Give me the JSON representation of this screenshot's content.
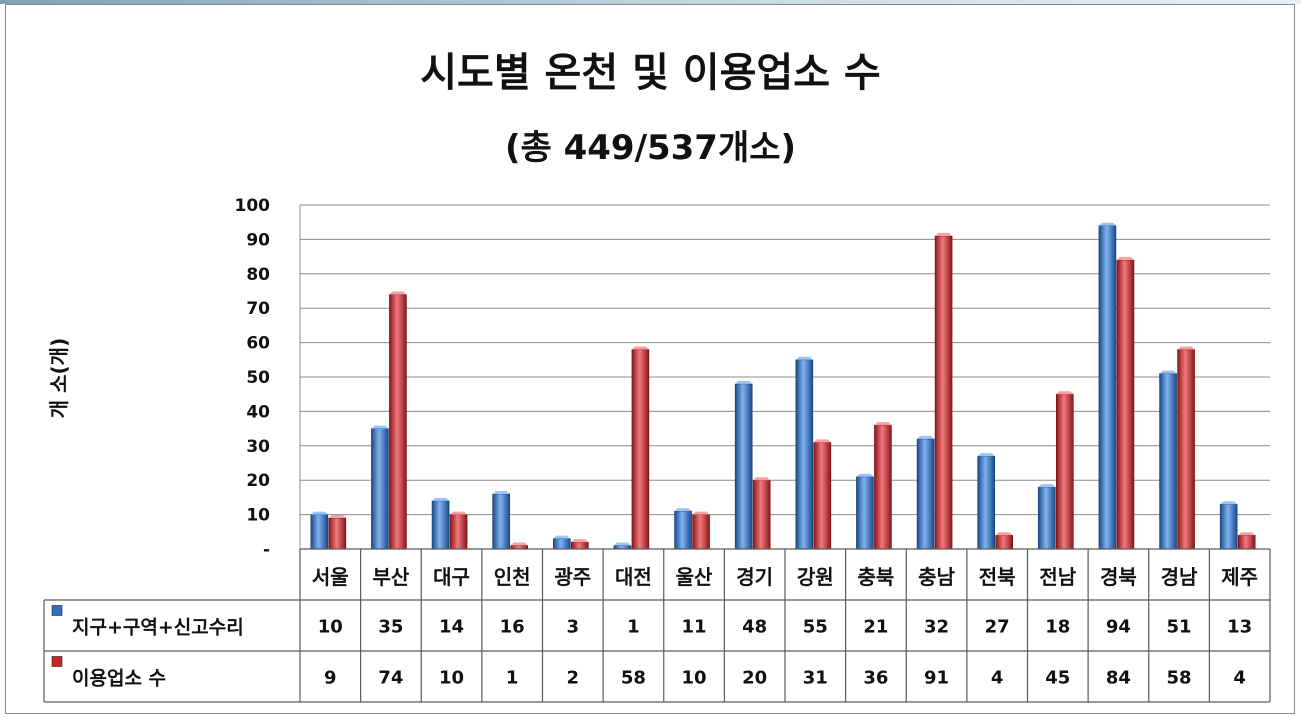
{
  "chart_data": {
    "type": "bar",
    "title": "시도별 온천 및 이용업소 수",
    "subtitle": "(총 449/537개소)",
    "ylabel": "개  소(개)",
    "ylim": [
      0,
      100
    ],
    "yticks": [
      "-",
      "10",
      "20",
      "30",
      "40",
      "50",
      "60",
      "70",
      "80",
      "90",
      "100"
    ],
    "categories": [
      "서울",
      "부산",
      "대구",
      "인천",
      "광주",
      "대전",
      "울산",
      "경기",
      "강원",
      "충북",
      "충남",
      "전북",
      "전남",
      "경북",
      "경남",
      "제주"
    ],
    "series": [
      {
        "name": "지구+구역+신고수리",
        "color": "#2f6fc4",
        "values": [
          10,
          35,
          14,
          16,
          3,
          1,
          11,
          48,
          55,
          21,
          32,
          27,
          18,
          94,
          51,
          13
        ]
      },
      {
        "name": "이용업소 수",
        "color": "#c8262b",
        "values": [
          9,
          74,
          10,
          1,
          2,
          58,
          10,
          20,
          31,
          36,
          91,
          4,
          45,
          84,
          58,
          4
        ]
      }
    ],
    "grid": true,
    "legend": "data-table"
  }
}
